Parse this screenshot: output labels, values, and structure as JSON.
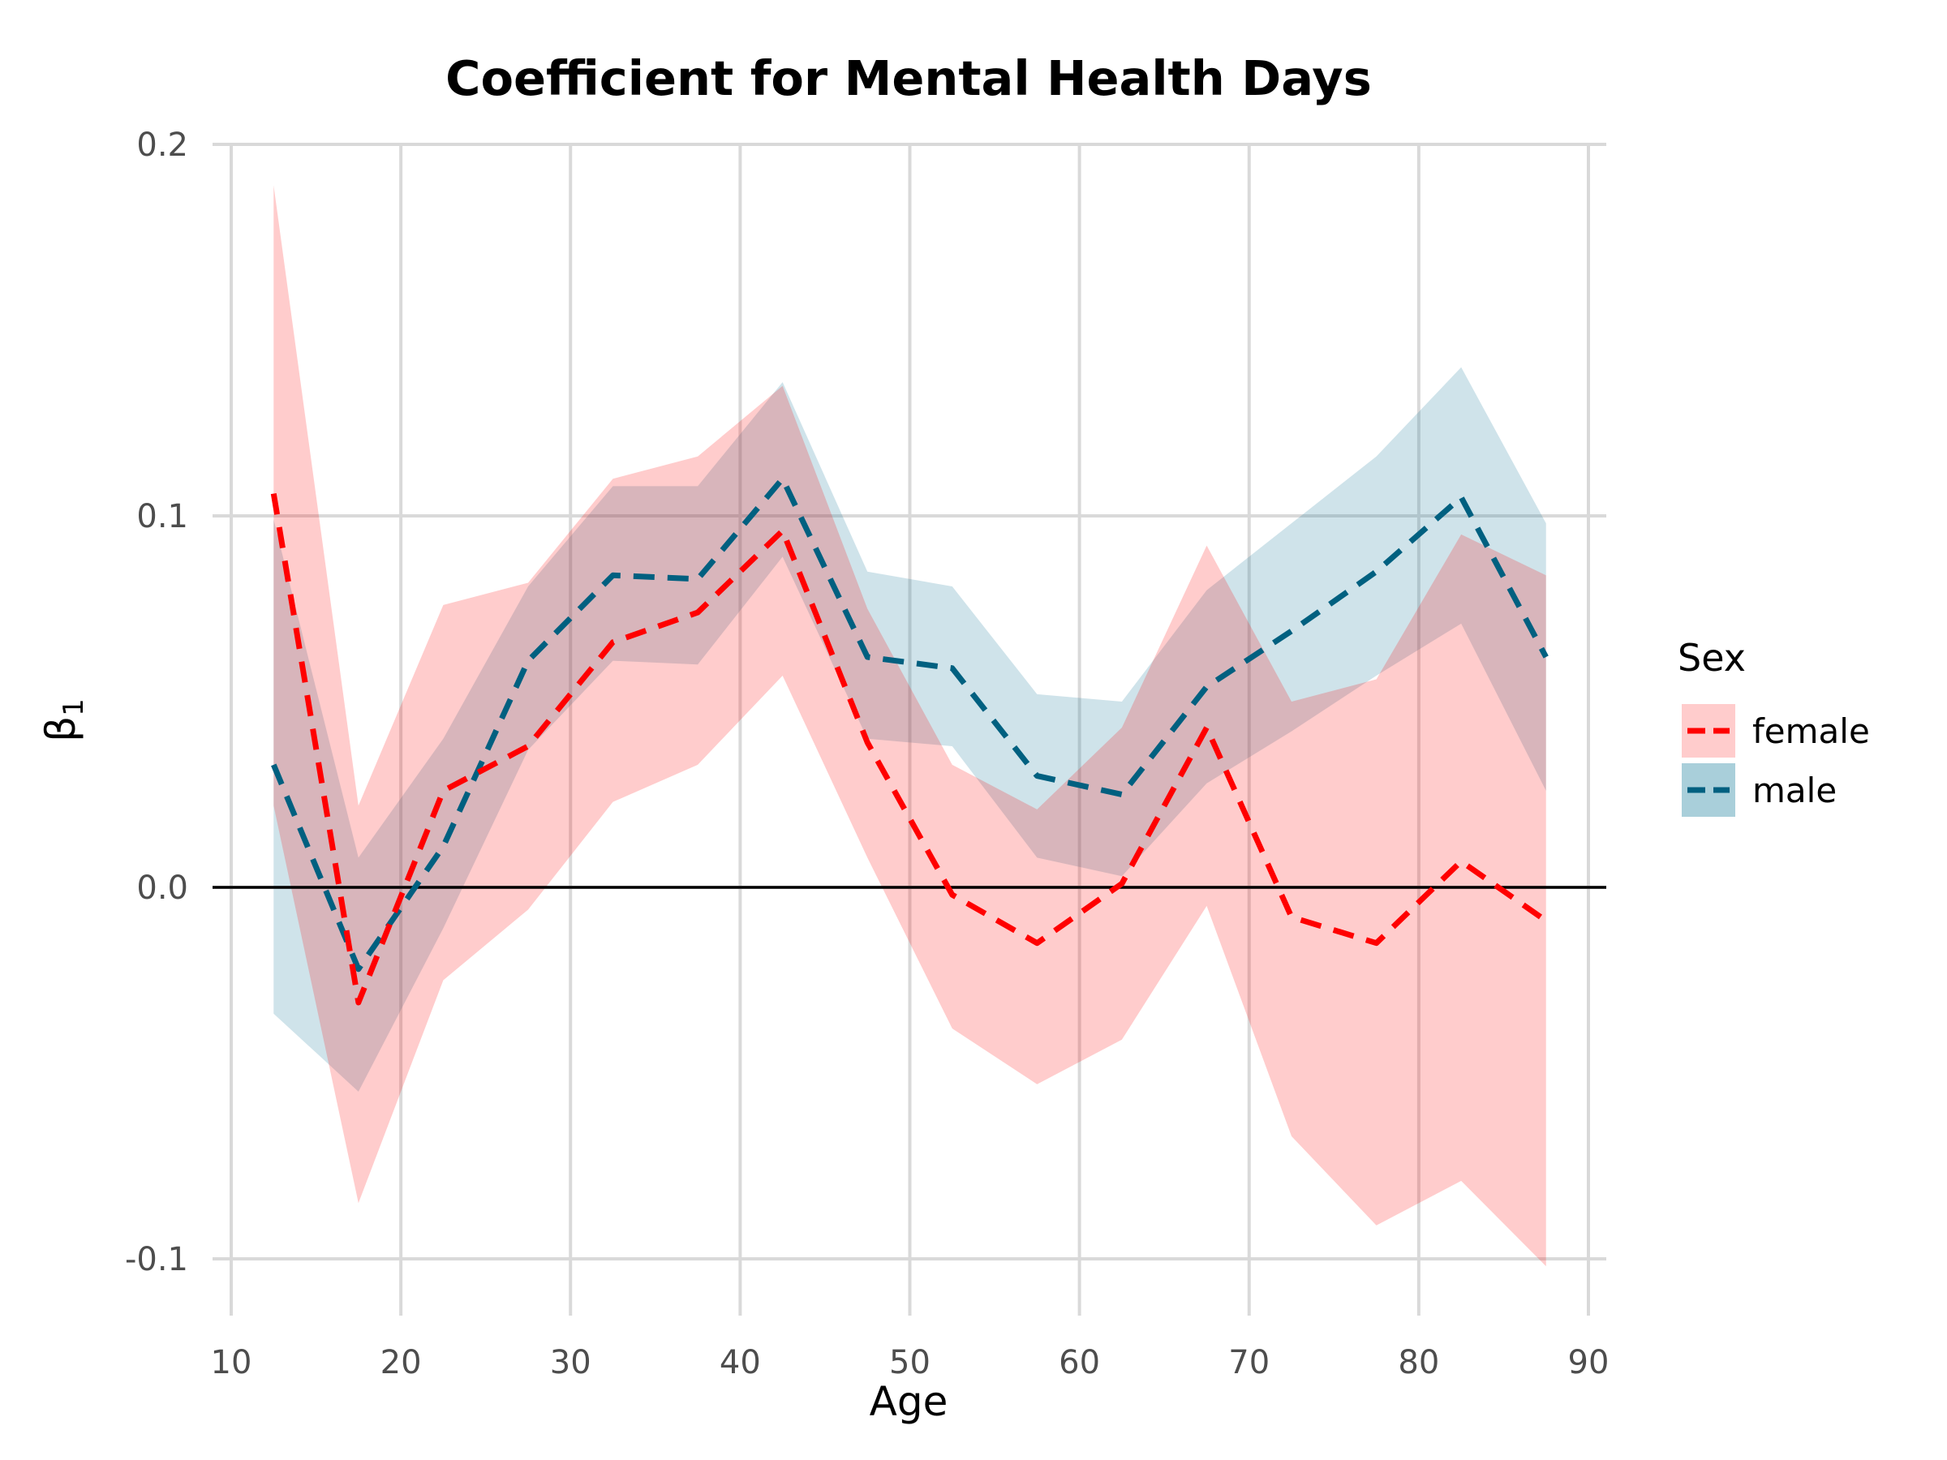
{
  "chart_data": {
    "type": "line",
    "title": "Coefficient for Mental Health Days",
    "xlabel": "Age",
    "ylabel_main": "β",
    "ylabel_sub": "1",
    "xlim": [
      10,
      90
    ],
    "ylim": [
      -0.1,
      0.2
    ],
    "xticks": [
      10,
      20,
      30,
      40,
      50,
      60,
      70,
      80,
      90
    ],
    "yticks": [
      -0.1,
      0.0,
      0.1,
      0.2
    ],
    "ytick_labels": [
      "-0.1",
      "0.0",
      "0.1",
      "0.2"
    ],
    "hline": 0,
    "grid": true,
    "legend": {
      "title": "Sex",
      "position": "right"
    },
    "x": [
      12.5,
      17.5,
      22.5,
      27.5,
      32.5,
      37.5,
      42.5,
      47.5,
      52.5,
      57.5,
      62.5,
      67.5,
      72.5,
      77.5,
      82.5,
      87.5
    ],
    "series": [
      {
        "name": "female",
        "color": "#ff0000",
        "fill": "#ffcccc",
        "values": [
          0.106,
          -0.031,
          0.026,
          0.038,
          0.066,
          0.074,
          0.096,
          0.039,
          -0.002,
          -0.015,
          0.001,
          0.043,
          -0.008,
          -0.015,
          0.007,
          -0.009
        ],
        "lower": [
          0.022,
          -0.085,
          -0.025,
          -0.006,
          0.023,
          0.033,
          0.057,
          0.008,
          -0.038,
          -0.053,
          -0.041,
          -0.005,
          -0.067,
          -0.091,
          -0.079,
          -0.102
        ],
        "upper": [
          0.189,
          0.022,
          0.076,
          0.082,
          0.11,
          0.116,
          0.135,
          0.075,
          0.033,
          0.021,
          0.043,
          0.092,
          0.05,
          0.056,
          0.095,
          0.084
        ]
      },
      {
        "name": "male",
        "color": "#006080",
        "fill": "#a9cfda",
        "values": [
          0.033,
          -0.022,
          0.011,
          0.061,
          0.084,
          0.083,
          0.11,
          0.062,
          0.059,
          0.03,
          0.025,
          0.054,
          0.069,
          0.085,
          0.105,
          0.062
        ],
        "lower": [
          -0.034,
          -0.055,
          -0.011,
          0.037,
          0.061,
          0.06,
          0.089,
          0.04,
          0.038,
          0.008,
          0.003,
          0.028,
          0.042,
          0.057,
          0.071,
          0.026
        ],
        "upper": [
          0.099,
          0.008,
          0.04,
          0.081,
          0.108,
          0.108,
          0.136,
          0.085,
          0.081,
          0.052,
          0.05,
          0.08,
          0.098,
          0.116,
          0.14,
          0.098
        ]
      }
    ]
  }
}
